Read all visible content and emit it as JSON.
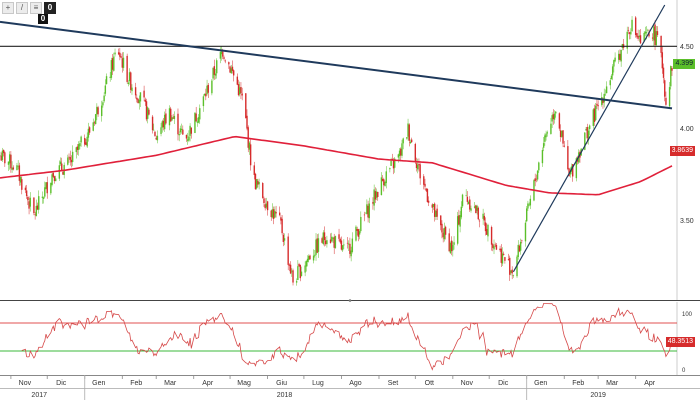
{
  "toolbar": {
    "buttons": [
      {
        "icon": "crosshair-icon",
        "glyph": "+"
      },
      {
        "icon": "draw-line-icon",
        "glyph": "/"
      },
      {
        "icon": "fibonacci-icon",
        "glyph": "≡"
      },
      {
        "icon": "zero-badge-icon",
        "glyph": "0"
      }
    ],
    "badge": "0"
  },
  "price_axis": {
    "ticks": [
      "4.50",
      "4.00",
      "3.50"
    ]
  },
  "tags": {
    "last_price": "4.399",
    "ma200": "3.8639",
    "rsi": "48.3513"
  },
  "rsi_axis": {
    "ticks": [
      "100",
      "0"
    ]
  },
  "time_axis": {
    "months": [
      "Nov",
      "Dic",
      "Gen",
      "Feb",
      "Mar",
      "Apr",
      "Mag",
      "Giu",
      "Lug",
      "Ago",
      "Set",
      "Ott",
      "Nov",
      "Dic",
      "Gen",
      "Feb",
      "Mar",
      "Apr"
    ],
    "years": [
      "2017",
      "2018",
      "2019"
    ]
  },
  "colors": {
    "up_candle": "#5bbf2a",
    "down_candle": "#d62b2b",
    "ma200": "#e0203a",
    "trendline": "#1f3a5c",
    "rsi_line": "#d64a4a",
    "rsi_upper": "#e05050",
    "rsi_lower": "#3bb83b"
  },
  "chart_data": {
    "type": "candlestick",
    "y_range": [
      3.15,
      4.72
    ],
    "y_ticks": [
      3.5,
      4.0,
      4.5
    ],
    "x_labels": [
      "Nov",
      "Dic",
      "Gen",
      "Feb",
      "Mar",
      "Apr",
      "Mag",
      "Giu",
      "Lug",
      "Ago",
      "Set",
      "Ott",
      "Nov",
      "Dic",
      "Gen",
      "Feb",
      "Mar",
      "Apr"
    ],
    "year_labels": [
      "2017",
      "2018",
      "2019"
    ],
    "last_price": 4.399,
    "ma200_last": 3.8639,
    "rsi_last": 48.3513,
    "rsi_range": [
      0,
      100
    ],
    "price_anchors": [
      [
        "2017-10-23",
        3.92
      ],
      [
        "2017-11-05",
        3.86
      ],
      [
        "2017-11-20",
        3.6
      ],
      [
        "2017-12-05",
        3.82
      ],
      [
        "2017-12-20",
        3.88
      ],
      [
        "2018-01-05",
        4.05
      ],
      [
        "2018-01-18",
        4.28
      ],
      [
        "2018-01-28",
        4.49
      ],
      [
        "2018-02-06",
        4.33
      ],
      [
        "2018-02-18",
        4.2
      ],
      [
        "2018-03-01",
        4.02
      ],
      [
        "2018-03-12",
        4.15
      ],
      [
        "2018-03-25",
        4.0
      ],
      [
        "2018-04-08",
        4.2
      ],
      [
        "2018-04-25",
        4.48
      ],
      [
        "2018-05-05",
        4.33
      ],
      [
        "2018-05-12",
        4.2
      ],
      [
        "2018-05-20",
        3.8
      ],
      [
        "2018-06-01",
        3.66
      ],
      [
        "2018-06-12",
        3.55
      ],
      [
        "2018-06-22",
        3.25
      ],
      [
        "2018-07-05",
        3.38
      ],
      [
        "2018-07-20",
        3.5
      ],
      [
        "2018-08-05",
        3.4
      ],
      [
        "2018-08-22",
        3.62
      ],
      [
        "2018-09-05",
        3.8
      ],
      [
        "2018-09-18",
        3.92
      ],
      [
        "2018-09-25",
        4.06
      ],
      [
        "2018-10-05",
        3.82
      ],
      [
        "2018-10-20",
        3.55
      ],
      [
        "2018-11-01",
        3.42
      ],
      [
        "2018-11-10",
        3.72
      ],
      [
        "2018-11-25",
        3.58
      ],
      [
        "2018-12-10",
        3.4
      ],
      [
        "2018-12-21",
        3.3
      ],
      [
        "2019-01-05",
        3.7
      ],
      [
        "2019-01-15",
        4.0
      ],
      [
        "2019-01-25",
        4.18
      ],
      [
        "2019-02-05",
        3.8
      ],
      [
        "2019-02-18",
        4.02
      ],
      [
        "2019-03-01",
        4.18
      ],
      [
        "2019-03-15",
        4.4
      ],
      [
        "2019-03-28",
        4.62
      ],
      [
        "2019-04-05",
        4.52
      ],
      [
        "2019-04-15",
        4.58
      ],
      [
        "2019-04-22",
        4.48
      ],
      [
        "2019-04-26",
        4.2
      ],
      [
        "2019-05-01",
        4.399
      ]
    ],
    "ma200_anchors": [
      [
        "2017-10-23",
        3.8
      ],
      [
        "2017-12-15",
        3.84
      ],
      [
        "2018-03-01",
        3.92
      ],
      [
        "2018-05-05",
        4.02
      ],
      [
        "2018-07-01",
        3.97
      ],
      [
        "2018-09-01",
        3.9
      ],
      [
        "2018-10-15",
        3.88
      ],
      [
        "2018-12-15",
        3.76
      ],
      [
        "2019-01-20",
        3.72
      ],
      [
        "2019-03-01",
        3.71
      ],
      [
        "2019-04-05",
        3.78
      ],
      [
        "2019-05-01",
        3.8639
      ]
    ],
    "horizontal_line": 4.5,
    "trendlines": [
      {
        "from": [
          "2017-10-23",
          4.63
        ],
        "to": [
          "2019-05-01",
          4.17
        ]
      },
      {
        "from": [
          "2018-12-21",
          3.3
        ],
        "to": [
          "2019-04-25",
          4.72
        ]
      }
    ],
    "rsi_levels": [
      70,
      30
    ]
  }
}
